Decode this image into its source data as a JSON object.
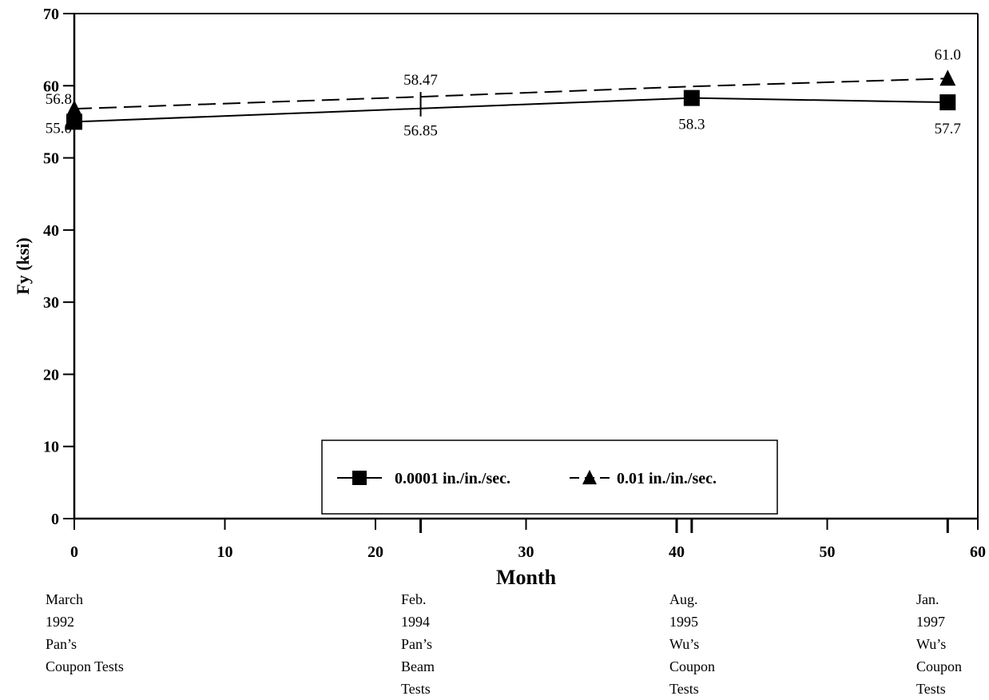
{
  "chart_data": {
    "type": "line",
    "title": "",
    "xlabel": "Month",
    "ylabel": "Fy (ksi)",
    "xlim": [
      0,
      60
    ],
    "ylim": [
      0,
      70
    ],
    "x_ticks": [
      "0",
      "10",
      "20",
      "30",
      "40",
      "50",
      "60"
    ],
    "y_ticks": [
      "0",
      "10",
      "20",
      "30",
      "40",
      "50",
      "60",
      "70"
    ],
    "grid": false,
    "legend_position": "bottom-center",
    "series": [
      {
        "name": "0.0001 in./in./sec.",
        "marker": "square",
        "line_style": "solid",
        "x": [
          0,
          23,
          41,
          58
        ],
        "y": [
          55.0,
          56.85,
          58.3,
          57.7
        ],
        "labels": [
          "55.0",
          "56.85",
          "58.3",
          "57.7"
        ]
      },
      {
        "name": "0.01 in./in./sec.",
        "marker": "triangle",
        "line_style": "dashed",
        "x": [
          0,
          23,
          41,
          58
        ],
        "y": [
          56.8,
          58.47,
          59.9,
          61.0
        ],
        "labels": [
          "56.8",
          "58.47",
          "",
          "61.0"
        ]
      }
    ],
    "event_markers_x": [
      23,
      40,
      41,
      58
    ],
    "events": [
      {
        "x": 0,
        "lines": [
          "March",
          "1992",
          "Pan’s",
          "Coupon Tests"
        ]
      },
      {
        "x": 23,
        "lines": [
          "Feb.",
          "1994",
          "Pan’s",
          "Beam",
          "Tests"
        ]
      },
      {
        "x": 41,
        "lines": [
          "Aug.",
          "1995",
          "Wu’s",
          "Coupon",
          "Tests"
        ]
      },
      {
        "x": 58,
        "lines": [
          "Jan.",
          "1997",
          "Wu’s",
          "Coupon",
          "Tests"
        ]
      }
    ]
  }
}
